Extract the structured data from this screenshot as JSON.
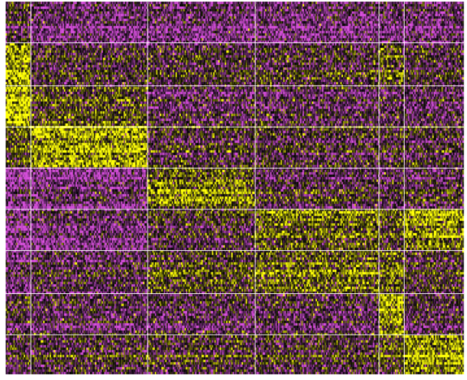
{
  "chart_data": {
    "type": "heatmap",
    "title": "",
    "xlabel": "",
    "ylabel": "",
    "colors": {
      "low": "#d148d6",
      "mid": "#000000",
      "high": "#ffff00",
      "separator": "#ffffff"
    },
    "x_groups": [
      {
        "id": 1,
        "relative_width": 0.055
      },
      {
        "id": 2,
        "relative_width": 0.255
      },
      {
        "id": 3,
        "relative_width": 0.235
      },
      {
        "id": 4,
        "relative_width": 0.27
      },
      {
        "id": 5,
        "relative_width": 0.055
      },
      {
        "id": 6,
        "relative_width": 0.13
      }
    ],
    "y_groups": [
      {
        "id": "A",
        "relative_height": 0.11
      },
      {
        "id": "B",
        "relative_height": 0.115
      },
      {
        "id": "C",
        "relative_height": 0.11
      },
      {
        "id": "D",
        "relative_height": 0.11
      },
      {
        "id": "E",
        "relative_height": 0.11
      },
      {
        "id": "F",
        "relative_height": 0.11
      },
      {
        "id": "G",
        "relative_height": 0.115
      },
      {
        "id": "H",
        "relative_height": 0.11
      },
      {
        "id": "I",
        "relative_height": 0.11
      }
    ],
    "block_means": [
      [
        -0.3,
        -0.9,
        -0.9,
        -0.9,
        -0.9,
        -0.9
      ],
      [
        1.2,
        -0.3,
        -0.3,
        -0.3,
        0.2,
        -0.4
      ],
      [
        1.8,
        0.5,
        -0.4,
        -0.4,
        -0.3,
        -0.4
      ],
      [
        0.3,
        1.2,
        -0.3,
        -0.3,
        -0.3,
        -0.3
      ],
      [
        -1.2,
        -1.0,
        0.8,
        -0.3,
        -0.4,
        -0.3
      ],
      [
        -1.3,
        -0.9,
        -0.2,
        0.6,
        0.2,
        1.0
      ],
      [
        -0.9,
        -0.5,
        0.2,
        0.5,
        0.4,
        -0.2
      ],
      [
        -0.4,
        -0.7,
        -0.7,
        -0.7,
        1.0,
        -0.6
      ],
      [
        -0.3,
        -0.2,
        -0.2,
        -0.2,
        0.3,
        1.1
      ]
    ]
  }
}
